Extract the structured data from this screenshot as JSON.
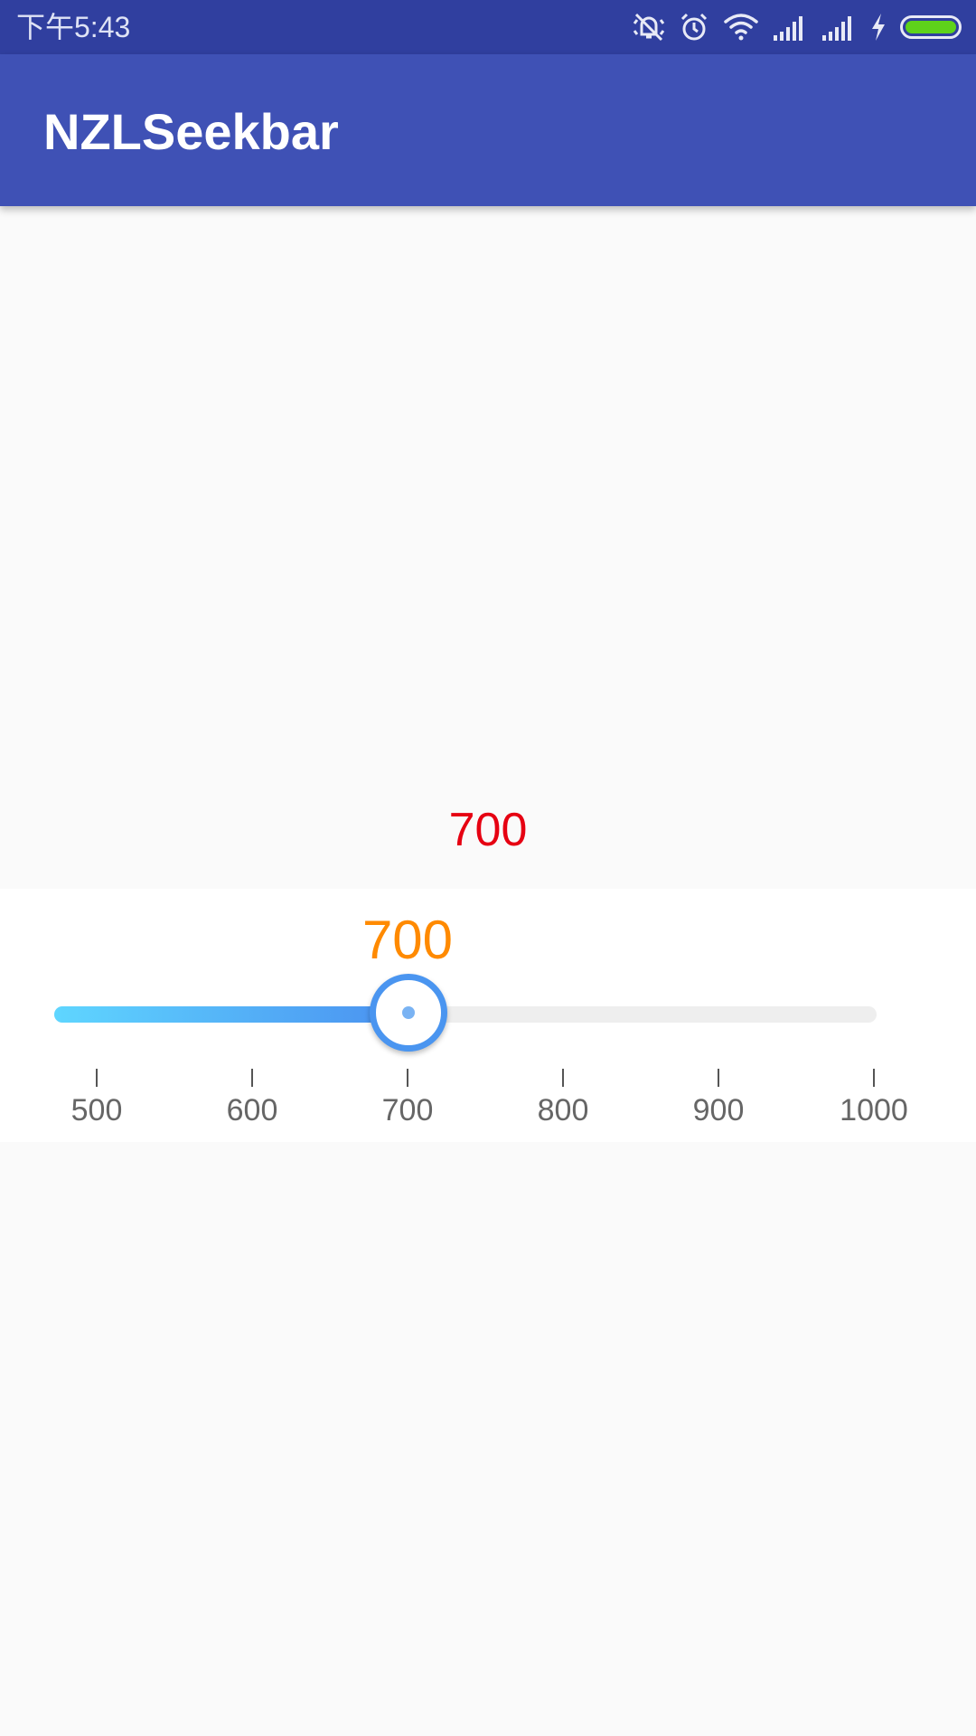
{
  "status_bar": {
    "time": "下午5:43",
    "icons": [
      "mute-vibrate-icon",
      "alarm-icon",
      "wifi-icon",
      "signal-icon",
      "signal-icon",
      "charging-icon",
      "battery-icon"
    ],
    "battery_color": "#5ed21b",
    "background_color": "#303f9f"
  },
  "app_bar": {
    "title": "NZLSeekbar",
    "background_color": "#3f51b5"
  },
  "readout": {
    "value": "700",
    "color": "#e60012"
  },
  "seekbar": {
    "min": 500,
    "max": 1000,
    "current": 700,
    "bubble_label": "700",
    "bubble_color": "#ff8a00",
    "track_gradient": [
      "#5fd6ff",
      "#4a90f0"
    ],
    "tick_labels": [
      "500",
      "600",
      "700",
      "800",
      "900",
      "1000"
    ],
    "tick_values": [
      500,
      600,
      700,
      800,
      900,
      1000
    ]
  }
}
